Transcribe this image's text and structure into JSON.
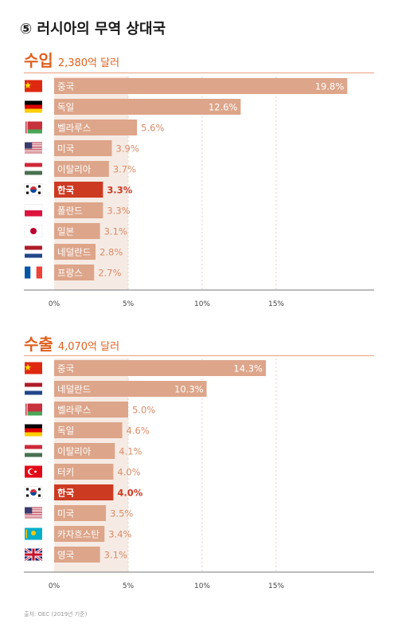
{
  "title": "⑤ 러시아의 무역 상대국",
  "source": "출처: OEC (2019년 기준)",
  "colors": {
    "accent": "#e0601f",
    "bar": "#dda58a",
    "bar_korea": "#cc3a22",
    "shade": "#f6ebe4",
    "tick_text": "#444444"
  },
  "chart_data": [
    {
      "type": "bar",
      "orientation": "horizontal",
      "title": "수입",
      "subtitle": "2,380억 달러",
      "categories": [
        "중국",
        "독일",
        "벨라루스",
        "미국",
        "이탈리아",
        "한국",
        "폴란드",
        "일본",
        "네덜란드",
        "프랑스"
      ],
      "values": [
        19.8,
        12.6,
        5.6,
        3.9,
        3.7,
        3.3,
        3.3,
        3.1,
        2.8,
        2.7
      ],
      "labels": [
        "19.8%",
        "12.6%",
        "5.6%",
        "3.9%",
        "3.7%",
        "3.3%",
        "3.3%",
        "3.1%",
        "2.8%",
        "2.7%"
      ],
      "flags": [
        "china-flag",
        "germany-flag",
        "belarus-flag",
        "usa-flag",
        "hungary-flag",
        "korea-flag",
        "poland-flag",
        "japan-flag",
        "netherlands-flag",
        "france-flag"
      ],
      "highlight": "한국",
      "xticks": [
        0,
        5,
        10,
        15
      ],
      "xtick_labels": [
        "0%",
        "5%",
        "10%",
        "15%"
      ],
      "xlim": [
        0,
        20
      ],
      "grid": true
    },
    {
      "type": "bar",
      "orientation": "horizontal",
      "title": "수출",
      "subtitle": "4,070억 달러",
      "categories": [
        "중국",
        "네덜란드",
        "벨라루스",
        "독일",
        "이탈리아",
        "터키",
        "한국",
        "미국",
        "카자흐스탄",
        "영국"
      ],
      "values": [
        14.3,
        10.3,
        5.0,
        4.6,
        4.1,
        4.0,
        4.0,
        3.5,
        3.4,
        3.1
      ],
      "labels": [
        "14.3%",
        "10.3%",
        "5.0%",
        "4.6%",
        "4.1%",
        "4.0%",
        "4.0%",
        "3.5%",
        "3.4%",
        "3.1%"
      ],
      "flags": [
        "china-flag",
        "netherlands-flag",
        "belarus-flag",
        "germany-flag",
        "hungary-flag",
        "turkey-flag",
        "korea-flag",
        "usa-flag",
        "kazakhstan-flag",
        "uk-flag"
      ],
      "highlight": "한국",
      "xticks": [
        0,
        5,
        10,
        15
      ],
      "xtick_labels": [
        "0%",
        "5%",
        "10%",
        "15%"
      ],
      "xlim": [
        0,
        20
      ],
      "grid": true
    }
  ]
}
